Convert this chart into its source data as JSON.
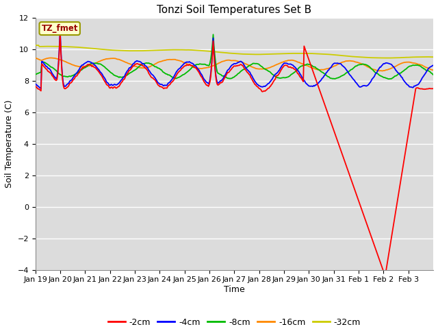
{
  "title": "Tonzi Soil Temperatures Set B",
  "xlabel": "Time",
  "ylabel": "Soil Temperature (C)",
  "ylim": [
    -4,
    12
  ],
  "yticks": [
    -4,
    -2,
    0,
    2,
    4,
    6,
    8,
    10,
    12
  ],
  "background_color": "#dcdcdc",
  "legend_label": "TZ_fmet",
  "legend_box_facecolor": "#ffffcc",
  "legend_box_edgecolor": "#999900",
  "legend_text_color": "#990000",
  "series_colors": [
    "#ff0000",
    "#0000ff",
    "#00bb00",
    "#ff8800",
    "#cccc00"
  ],
  "series_labels": [
    "-2cm",
    "-4cm",
    "-8cm",
    "-16cm",
    "-32cm"
  ],
  "xtick_labels": [
    "Jan 19",
    "Jan 20",
    "Jan 21",
    "Jan 22",
    "Jan 23",
    "Jan 24",
    "Jan 25",
    "Jan 26",
    "Jan 27",
    "Jan 28",
    "Jan 29",
    "Jan 30",
    "Jan 31",
    "Feb 1",
    "Feb 2",
    "Feb 3"
  ],
  "figsize": [
    6.4,
    4.8
  ],
  "dpi": 100,
  "n_points": 500,
  "title_fontsize": 11,
  "tick_fontsize": 8,
  "axis_label_fontsize": 9
}
